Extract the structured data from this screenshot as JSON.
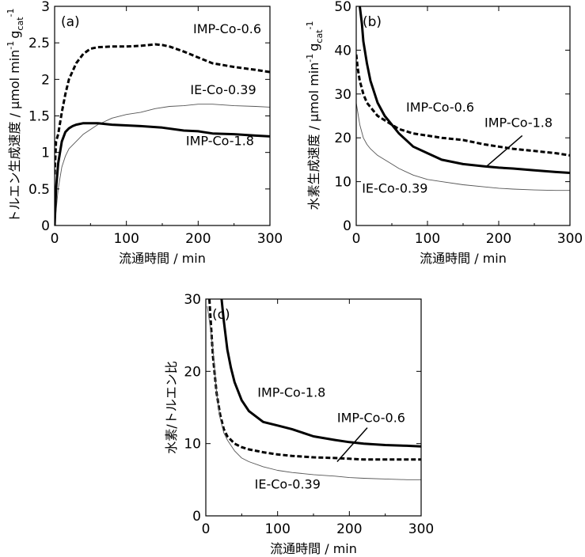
{
  "chart_data": [
    {
      "panel": "(a)",
      "type": "line",
      "xlabel": "流通時間 / min",
      "ylabel_main": "トルエン生成速度 / μmol min",
      "ylabel_sup": "-1",
      "ylabel_unit": "g",
      "ylabel_sub": "cat",
      "ylabel_sup2": "-1",
      "xlim": [
        0,
        300
      ],
      "ylim": [
        0,
        3
      ],
      "xticks": [
        0,
        100,
        200,
        300
      ],
      "yticks": [
        0,
        0.5,
        1,
        1.5,
        2,
        2.5,
        3
      ],
      "ytick_labels": [
        "0",
        "0.5",
        "1",
        "1.5",
        "2",
        "2.5",
        "3"
      ],
      "series": [
        {
          "name": "IMP-Co-0.6",
          "style": "dashed-bold",
          "x": [
            0,
            2,
            5,
            10,
            15,
            20,
            30,
            40,
            50,
            60,
            80,
            100,
            120,
            140,
            150,
            160,
            180,
            200,
            220,
            250,
            280,
            300
          ],
          "y": [
            0.7,
            1.15,
            1.25,
            1.55,
            1.8,
            2.0,
            2.22,
            2.35,
            2.42,
            2.44,
            2.45,
            2.45,
            2.46,
            2.48,
            2.47,
            2.45,
            2.38,
            2.3,
            2.22,
            2.17,
            2.13,
            2.1
          ]
        },
        {
          "name": "IE-Co-0.39",
          "style": "thin",
          "x": [
            0,
            5,
            10,
            15,
            20,
            30,
            40,
            60,
            80,
            100,
            120,
            140,
            160,
            180,
            200,
            220,
            250,
            280,
            300
          ],
          "y": [
            0,
            0.5,
            0.8,
            0.95,
            1.05,
            1.15,
            1.25,
            1.38,
            1.47,
            1.52,
            1.55,
            1.6,
            1.63,
            1.64,
            1.66,
            1.66,
            1.64,
            1.63,
            1.62
          ]
        },
        {
          "name": "IMP-Co-1.8",
          "style": "solid-bold",
          "x": [
            0,
            2,
            5,
            10,
            15,
            20,
            25,
            30,
            40,
            60,
            80,
            100,
            120,
            150,
            180,
            200,
            220,
            250,
            280,
            300
          ],
          "y": [
            0,
            0.5,
            0.85,
            1.15,
            1.28,
            1.33,
            1.36,
            1.38,
            1.4,
            1.4,
            1.38,
            1.37,
            1.36,
            1.34,
            1.3,
            1.29,
            1.26,
            1.25,
            1.23,
            1.22
          ]
        }
      ],
      "annotations": [
        {
          "text": "IMP-Co-0.6",
          "x": 193,
          "y": 2.63
        },
        {
          "text": "IE-Co-0.39",
          "x": 189,
          "y": 1.8
        },
        {
          "text": "IMP-Co-1.8",
          "x": 183,
          "y": 1.1
        }
      ]
    },
    {
      "panel": "(b)",
      "type": "line",
      "xlabel": "流通時間 / min",
      "ylabel_main": "水素生成速度 / μmol min",
      "ylabel_sup": "-1",
      "ylabel_unit": "g",
      "ylabel_sub": "cat",
      "ylabel_sup2": "-1",
      "xlim": [
        0,
        300
      ],
      "ylim": [
        0,
        50
      ],
      "xticks": [
        0,
        100,
        200,
        300
      ],
      "yticks": [
        0,
        10,
        20,
        30,
        40,
        50
      ],
      "ytick_labels": [
        "0",
        "10",
        "20",
        "30",
        "40",
        "50"
      ],
      "series": [
        {
          "name": "IMP-Co-1.8",
          "style": "solid-bold",
          "x": [
            5,
            8,
            10,
            15,
            20,
            30,
            40,
            50,
            60,
            80,
            100,
            120,
            150,
            180,
            200,
            220,
            250,
            280,
            300
          ],
          "y": [
            50,
            46,
            42,
            37,
            33,
            28,
            25,
            23,
            21,
            18,
            16.5,
            15,
            14,
            13.5,
            13.2,
            13,
            12.6,
            12.2,
            12
          ]
        },
        {
          "name": "IMP-Co-0.6",
          "style": "dashed-bold",
          "x": [
            0,
            2,
            5,
            10,
            15,
            20,
            30,
            40,
            50,
            60,
            80,
            100,
            120,
            150,
            180,
            200,
            220,
            250,
            280,
            300
          ],
          "y": [
            39,
            36,
            33,
            30,
            28,
            27,
            25,
            24,
            23,
            22,
            21,
            20.5,
            20,
            19.5,
            18.5,
            18,
            17.5,
            17,
            16.5,
            16
          ]
        },
        {
          "name": "IE-Co-0.39",
          "style": "thin",
          "x": [
            0,
            2,
            5,
            10,
            15,
            20,
            30,
            40,
            50,
            60,
            80,
            100,
            120,
            150,
            180,
            200,
            220,
            250,
            280,
            300
          ],
          "y": [
            28,
            26,
            23,
            20,
            18.5,
            17.5,
            16,
            15,
            14,
            13,
            11.5,
            10.5,
            10,
            9.3,
            8.8,
            8.5,
            8.3,
            8.1,
            8,
            8
          ]
        }
      ],
      "annotations": [
        {
          "text": "IMP-Co-0.6",
          "x": 70,
          "y": 26
        },
        {
          "text": "IMP-Co-1.8",
          "x": 180,
          "y": 22.5
        },
        {
          "text": "IE-Co-0.39",
          "x": 8,
          "y": 7.5
        }
      ],
      "leader_line": {
        "from": [
          233,
          20.5
        ],
        "to": [
          183,
          13.5
        ]
      }
    },
    {
      "panel": "(c)",
      "type": "line",
      "xlabel": "流通時間 / min",
      "ylabel_main": "水素/トルエン比",
      "xlim": [
        0,
        300
      ],
      "ylim": [
        0,
        30
      ],
      "xticks": [
        0,
        100,
        200,
        300
      ],
      "yticks": [
        0,
        10,
        20,
        30
      ],
      "ytick_labels": [
        "0",
        "10",
        "20",
        "30"
      ],
      "series": [
        {
          "name": "IMP-Co-1.8",
          "style": "solid-bold",
          "x": [
            22,
            25,
            30,
            35,
            40,
            50,
            60,
            80,
            100,
            120,
            150,
            180,
            200,
            220,
            250,
            280,
            300
          ],
          "y": [
            30,
            27,
            23,
            20.5,
            18.5,
            16,
            14.5,
            13,
            12.5,
            12,
            11,
            10.5,
            10.2,
            10,
            9.8,
            9.7,
            9.6
          ]
        },
        {
          "name": "IMP-Co-0.6",
          "style": "dashed-bold",
          "x": [
            5,
            8,
            10,
            15,
            20,
            25,
            30,
            40,
            50,
            60,
            80,
            100,
            120,
            150,
            180,
            200,
            220,
            250,
            280,
            300
          ],
          "y": [
            30,
            25,
            22,
            17,
            14,
            12,
            11,
            10,
            9.5,
            9.2,
            8.8,
            8.5,
            8.3,
            8.1,
            8,
            7.9,
            7.8,
            7.8,
            7.8,
            7.8
          ]
        },
        {
          "name": "IE-Co-0.39",
          "style": "thin",
          "x": [
            2,
            5,
            10,
            15,
            20,
            25,
            30,
            40,
            50,
            60,
            80,
            100,
            120,
            150,
            180,
            200,
            220,
            250,
            280,
            300
          ],
          "y": [
            29,
            27,
            23,
            17,
            13.5,
            11.5,
            10.5,
            9,
            8,
            7.5,
            6.8,
            6.3,
            6,
            5.7,
            5.5,
            5.3,
            5.2,
            5.1,
            5,
            5
          ]
        }
      ],
      "annotations": [
        {
          "text": "IMP-Co-1.8",
          "x": 72,
          "y": 16.5
        },
        {
          "text": "IMP-Co-0.6",
          "x": 183,
          "y": 13
        },
        {
          "text": "IE-Co-0.39",
          "x": 68,
          "y": 3.8
        }
      ],
      "leader_line": {
        "from": [
          225,
          12.2
        ],
        "to": [
          183,
          7.5
        ]
      }
    }
  ]
}
